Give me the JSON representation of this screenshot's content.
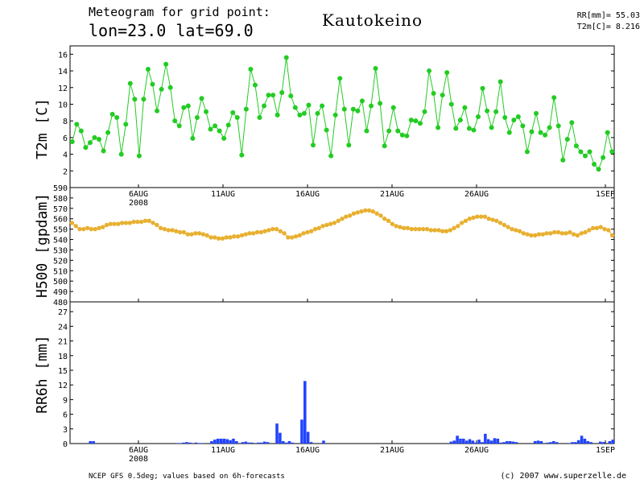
{
  "header": {
    "line1": "Meteogram for grid point:",
    "line2": "lon=23.0 lat=69.0",
    "station": "Kautokeino",
    "stat_rr": "RR[mm]= 55.03",
    "stat_t2m": "T2m[C]= 8.216"
  },
  "footer": {
    "left": "NCEP GFS 0.5deg; values based on 6h-forecasts",
    "right": "(c) 2007 www.superzelle.de"
  },
  "colors": {
    "t2m": "#22cc22",
    "h500": "#e8b030",
    "rr": "#2244ff"
  },
  "chart_data": [
    {
      "type": "line",
      "ylabel": "T2m [C]",
      "ylim": [
        0,
        17
      ],
      "yticks": [
        "2",
        "4",
        "6",
        "8",
        "10",
        "12",
        "14",
        "16"
      ],
      "xticks": [
        "6AUG",
        "11AUG",
        "16AUG",
        "21AUG",
        "26AUG",
        "1SEP"
      ],
      "xtick_sublabel": "2008",
      "series": [
        {
          "values": [
            5.5,
            7.6,
            6.8,
            4.8,
            5.4,
            6.0,
            5.8,
            4.4,
            6.6,
            8.8,
            8.4,
            4.0,
            7.6,
            12.5,
            10.6,
            3.8,
            10.6,
            14.2,
            12.4,
            9.2,
            11.8,
            14.8,
            12.0,
            8.0,
            7.4,
            9.6,
            9.8,
            5.9,
            8.4,
            10.7,
            9.1,
            7.0,
            7.4,
            6.8,
            5.9,
            7.5,
            9.0,
            8.4,
            3.9,
            9.4,
            14.2,
            12.3,
            8.4,
            9.8,
            11.1,
            11.1,
            8.7,
            11.4,
            15.6,
            11.0,
            9.6,
            8.7,
            8.9,
            9.9,
            5.1,
            8.9,
            9.8,
            6.9,
            3.8,
            8.7,
            13.1,
            9.4,
            5.1,
            9.4,
            9.2,
            10.4,
            6.8,
            9.8,
            14.3,
            10.1,
            5.0,
            6.8,
            9.6,
            6.8,
            6.3,
            6.2,
            8.1,
            8.0,
            7.7,
            9.1,
            14.0,
            11.3,
            7.2,
            11.1,
            13.8,
            10.0,
            7.1,
            8.1,
            9.6,
            7.1,
            6.9,
            8.5,
            11.9,
            9.2,
            7.2,
            9.1,
            12.7,
            8.4,
            6.6,
            8.1,
            8.5,
            7.4,
            4.3,
            6.7,
            8.9,
            6.6,
            6.3,
            7.2,
            10.8,
            7.4,
            3.3,
            5.8,
            7.8,
            5.0,
            4.3,
            3.8,
            4.3,
            2.8,
            2.2,
            3.6,
            6.6,
            4.3
          ]
        }
      ]
    },
    {
      "type": "line",
      "ylabel": "H500 [gpdam]",
      "ylim": [
        480,
        590
      ],
      "yticks": [
        "480",
        "490",
        "500",
        "510",
        "520",
        "530",
        "540",
        "550",
        "560",
        "570",
        "580",
        "590"
      ],
      "series": [
        {
          "values": [
            556,
            553,
            550,
            550,
            551,
            550,
            550,
            551,
            552,
            554,
            555,
            555,
            555,
            556,
            556,
            556,
            557,
            557,
            557,
            558,
            558,
            556,
            554,
            551,
            550,
            549,
            549,
            548,
            547,
            547,
            545,
            545,
            546,
            546,
            545,
            544,
            542,
            542,
            541,
            541,
            542,
            542,
            543,
            543,
            544,
            545,
            546,
            546,
            547,
            547,
            548,
            549,
            550,
            550,
            548,
            546,
            542,
            542,
            543,
            544,
            546,
            547,
            548,
            550,
            551,
            553,
            554,
            555,
            556,
            558,
            560,
            562,
            563,
            565,
            566,
            567,
            568,
            568,
            567,
            565,
            563,
            560,
            558,
            555,
            553,
            552,
            551,
            551,
            550,
            550,
            550,
            550,
            550,
            549,
            549,
            549,
            548,
            548,
            549,
            551,
            553,
            556,
            558,
            560,
            561,
            562,
            562,
            562,
            560,
            559,
            558,
            556,
            554,
            552,
            550,
            549,
            548,
            546,
            545,
            544,
            544,
            545,
            545,
            546,
            546,
            547,
            547,
            546,
            546,
            547,
            545,
            544,
            546,
            547,
            549,
            551,
            551,
            552,
            550,
            549,
            544
          ]
        }
      ]
    },
    {
      "type": "bar",
      "ylabel": "RR6h [mm]",
      "ylim": [
        0,
        29
      ],
      "yticks": [
        "0",
        "3",
        "6",
        "9",
        "12",
        "15",
        "18",
        "21",
        "24",
        "27"
      ],
      "series": [
        {
          "values": [
            0.0,
            0.0,
            0.0,
            0.0,
            0.0,
            0.0,
            0.5,
            0.5,
            0.0,
            0.0,
            0.0,
            0.0,
            0.0,
            0.0,
            0.0,
            0.0,
            0.0,
            0.0,
            0.0,
            0.0,
            0.0,
            0.0,
            0.0,
            0.0,
            0.0,
            0.0,
            0.0,
            0.0,
            0.0,
            0.0,
            0.0,
            0.0,
            0.0,
            0.0,
            0.1,
            0.1,
            0.2,
            0.3,
            0.2,
            0.0,
            0.2,
            0.1,
            0.1,
            0.0,
            0.0,
            0.5,
            0.8,
            1.0,
            1.0,
            1.0,
            0.9,
            0.7,
            1.0,
            0.5,
            0.0,
            0.3,
            0.4,
            0.2,
            0.2,
            0.0,
            0.2,
            0.2,
            0.4,
            0.3,
            0.0,
            0.0,
            4.1,
            2.2,
            0.5,
            0.2,
            0.5,
            0.2,
            0.0,
            0.0,
            4.9,
            12.8,
            2.4,
            0.3,
            0.0,
            0.0,
            0.0,
            0.6,
            0.0,
            0.0,
            0.0,
            0.0,
            0.0,
            0.0,
            0.0,
            0.0,
            0.0,
            0.0,
            0.0,
            0.0,
            0.0,
            0.0,
            0.0,
            0.0,
            0.0,
            0.0,
            0.0,
            0.0,
            0.0,
            0.0,
            0.0,
            0.0,
            0.0,
            0.0,
            0.0,
            0.0,
            0.0,
            0.0,
            0.0,
            0.0,
            0.0,
            0.0,
            0.0,
            0.0,
            0.0,
            0.0,
            0.0,
            0.0,
            0.4,
            0.6,
            1.6,
            1.0,
            1.0,
            0.6,
            0.9,
            0.6,
            0.2,
            0.8,
            0.3,
            2.0,
            0.9,
            0.6,
            1.1,
            1.0,
            0.2,
            0.3,
            0.5,
            0.5,
            0.4,
            0.3,
            0.0,
            0.0,
            0.0,
            0.0,
            0.0,
            0.5,
            0.6,
            0.5,
            0.0,
            0.2,
            0.3,
            0.5,
            0.3,
            0.0,
            0.0,
            0.0,
            0.1,
            0.3,
            0.3,
            0.7,
            1.6,
            1.0,
            0.5,
            0.3,
            0.0,
            0.0,
            0.4,
            0.3,
            0.0,
            0.5,
            0.8
          ]
        }
      ]
    }
  ]
}
